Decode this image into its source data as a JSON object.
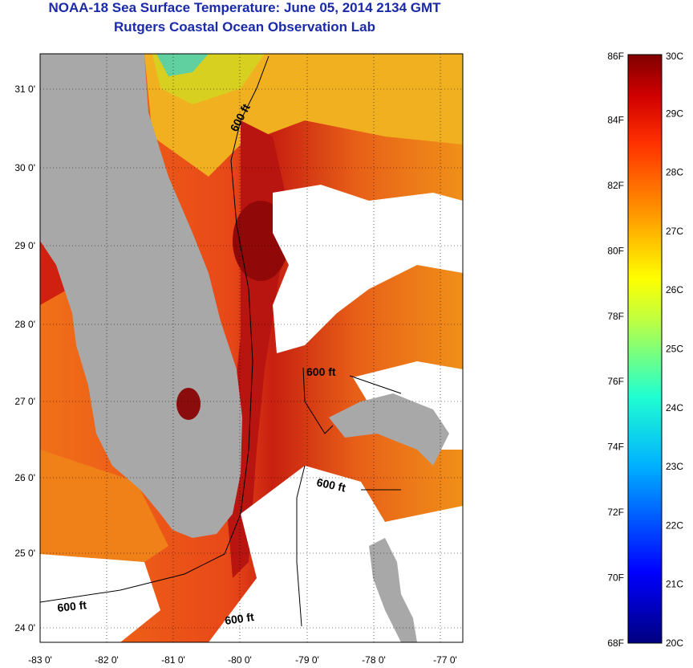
{
  "header": {
    "title": "NOAA-18 Sea Surface Temperature:  June 05, 2014 2134 GMT",
    "subtitle": "Rutgers Coastal Ocean Observation Lab"
  },
  "map": {
    "region": "Florida / Straits of Florida / Northern Bahamas",
    "lat_ticks": [
      "31 0'",
      "30 0'",
      "29 0'",
      "28 0'",
      "27 0'",
      "26 0'",
      "25 0'",
      "24 0'"
    ],
    "lon_ticks": [
      "-83 0'",
      "-82 0'",
      "-81 0'",
      "-80 0'",
      "-79 0'",
      "-78 0'",
      "-77 0'"
    ],
    "contour_labels": [
      "600 ft",
      "600 ft",
      "600 ft",
      "600 ft",
      "600 ft"
    ],
    "colors": {
      "land": "#a8a8a8",
      "cloud": "#ffffff",
      "ocean_warm": "#e8501c",
      "ocean_hot": "#b01010",
      "ocean_mild": "#f0a010"
    }
  },
  "colorbar": {
    "fahrenheit_labels": [
      "86F",
      "84F",
      "82F",
      "80F",
      "78F",
      "76F",
      "74F",
      "72F",
      "70F",
      "68F"
    ],
    "celsius_labels": [
      "30C",
      "29C",
      "28C",
      "27C",
      "26C",
      "25C",
      "24C",
      "23C",
      "22C",
      "21C",
      "20C"
    ],
    "range_c": [
      20,
      30
    ],
    "range_f": [
      68,
      86
    ]
  }
}
